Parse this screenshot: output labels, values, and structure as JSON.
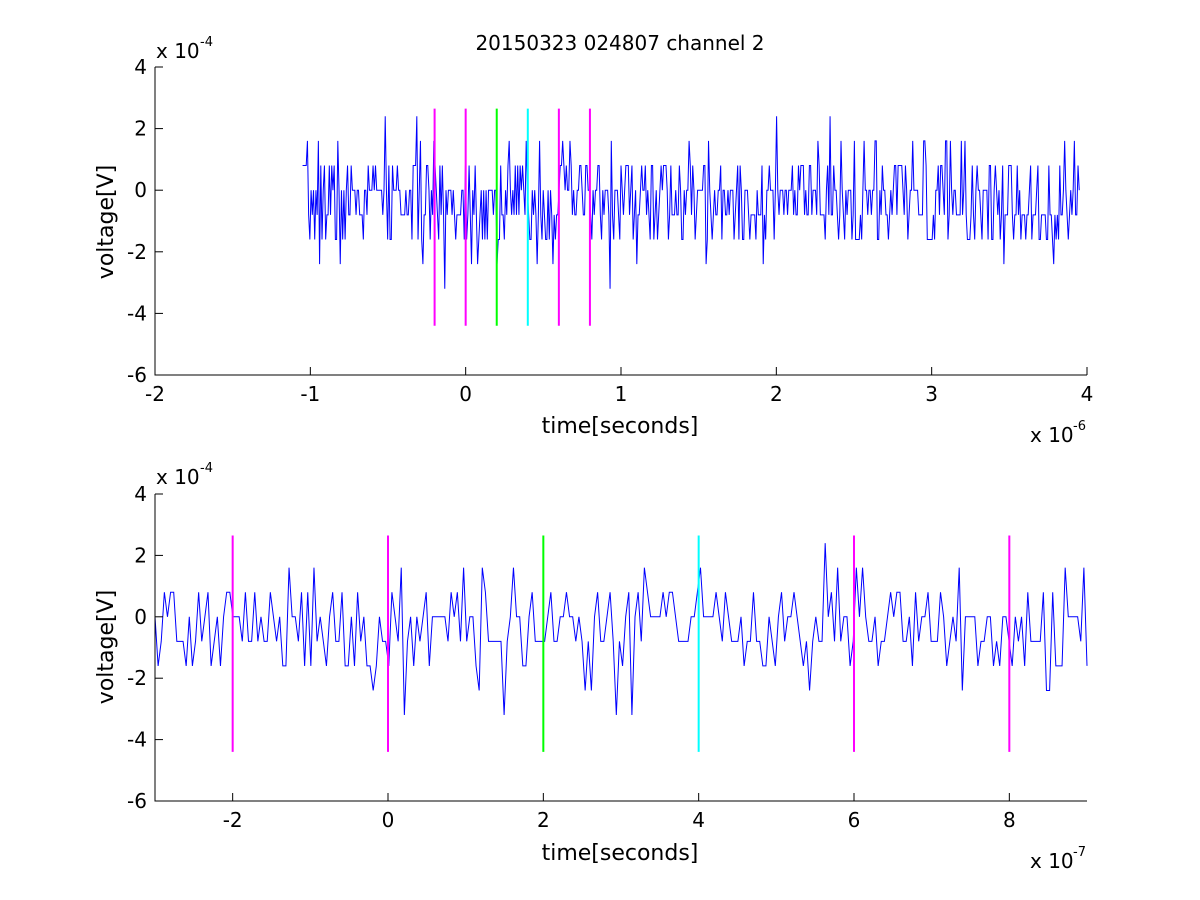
{
  "title": "20150323 024807 channel 2",
  "chart_data": [
    {
      "type": "line",
      "xlabel": "time[seconds]",
      "ylabel": "voltage[V]",
      "x_exponent_base": "x 10",
      "x_exponent_power": "-6",
      "y_exponent_base": "x 10",
      "y_exponent_power": "-4",
      "xlim": [
        -2,
        4
      ],
      "ylim": [
        -6,
        4
      ],
      "x_ticks": [
        -2,
        -1,
        0,
        1,
        2,
        3,
        4
      ],
      "y_ticks": [
        -6,
        -4,
        -2,
        0,
        2,
        4
      ],
      "grid": false,
      "signal": {
        "color": "#0000ff",
        "x_start": -1.05,
        "x_end": 3.95,
        "num_points": 640,
        "seed": 7,
        "levels": [
          -3.2,
          -2.4,
          -1.6,
          -0.8,
          0,
          0.8,
          1.6,
          2.4
        ],
        "sigma": 0.9
      },
      "markers": [
        {
          "x": -0.2,
          "color": "#ff00ff",
          "ymin": -4.4,
          "ymax": 2.65
        },
        {
          "x": 0.0,
          "color": "#ff00ff",
          "ymin": -4.4,
          "ymax": 2.65
        },
        {
          "x": 0.2,
          "color": "#00ff00",
          "ymin": -4.4,
          "ymax": 2.65
        },
        {
          "x": 0.4,
          "color": "#00ffff",
          "ymin": -4.4,
          "ymax": 2.65
        },
        {
          "x": 0.6,
          "color": "#ff00ff",
          "ymin": -4.4,
          "ymax": 2.65
        },
        {
          "x": 0.8,
          "color": "#ff00ff",
          "ymin": -4.4,
          "ymax": 2.65
        }
      ]
    },
    {
      "type": "line",
      "xlabel": "time[seconds]",
      "ylabel": "voltage[V]",
      "x_exponent_base": "x 10",
      "x_exponent_power": "-7",
      "y_exponent_base": "x 10",
      "y_exponent_power": "-4",
      "xlim": [
        -3,
        9
      ],
      "ylim": [
        -6,
        4
      ],
      "x_ticks": [
        -2,
        0,
        2,
        4,
        6,
        8
      ],
      "y_ticks": [
        -6,
        -4,
        -2,
        0,
        2,
        4
      ],
      "grid": false,
      "signal": {
        "color": "#0000ff",
        "x_start": -3,
        "x_end": 9,
        "num_points": 300,
        "seed": 21,
        "levels": [
          -4.0,
          -3.2,
          -2.4,
          -1.6,
          -0.8,
          0,
          0.8,
          1.6,
          2.4
        ],
        "sigma": 0.95
      },
      "markers": [
        {
          "x": -2,
          "color": "#ff00ff",
          "ymin": -4.4,
          "ymax": 2.65
        },
        {
          "x": 0,
          "color": "#ff00ff",
          "ymin": -4.4,
          "ymax": 2.65
        },
        {
          "x": 2,
          "color": "#00ff00",
          "ymin": -4.4,
          "ymax": 2.65
        },
        {
          "x": 4,
          "color": "#00ffff",
          "ymin": -4.4,
          "ymax": 2.65
        },
        {
          "x": 6,
          "color": "#ff00ff",
          "ymin": -4.4,
          "ymax": 2.65
        },
        {
          "x": 8,
          "color": "#ff00ff",
          "ymin": -4.4,
          "ymax": 2.65
        }
      ]
    }
  ]
}
